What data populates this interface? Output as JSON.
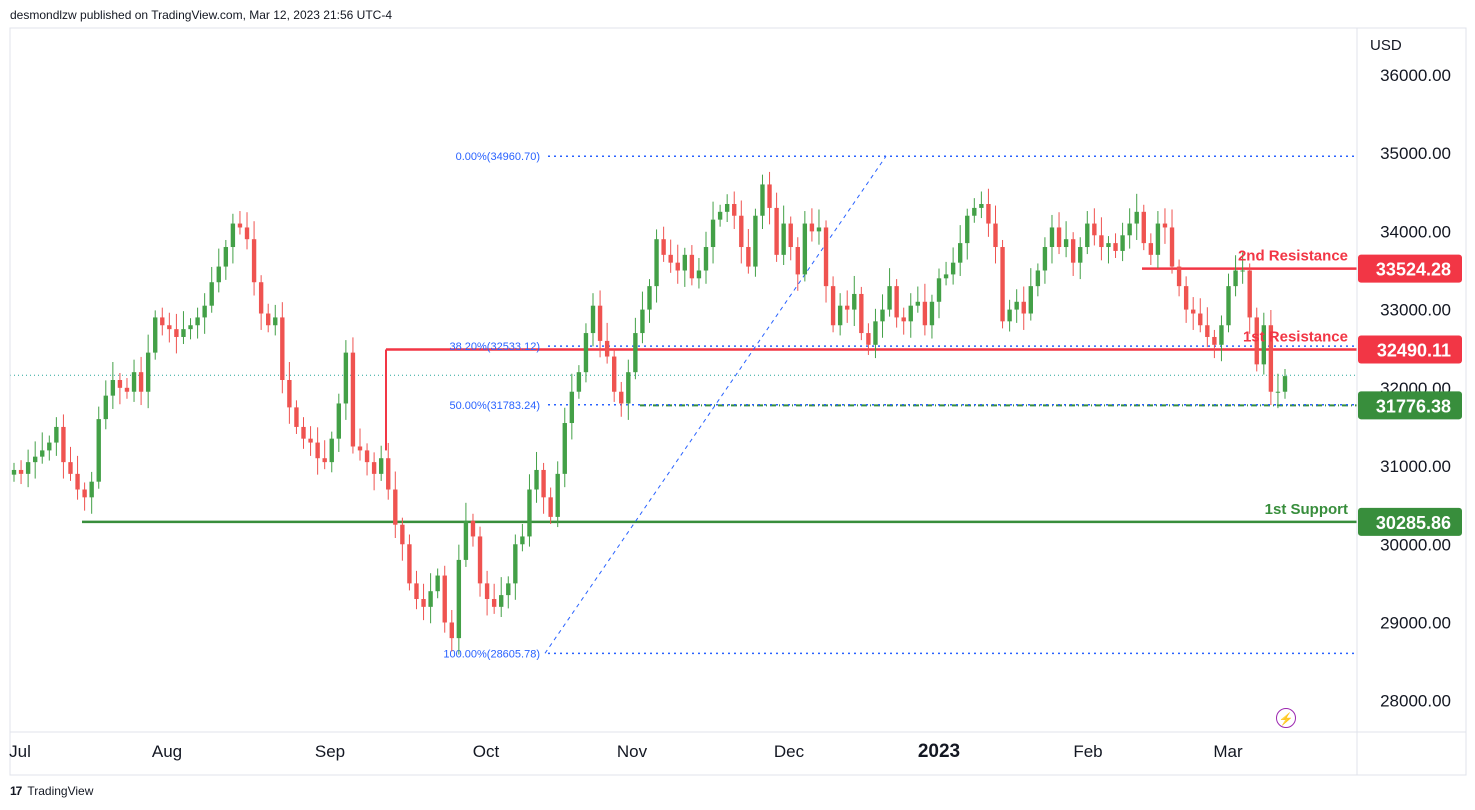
{
  "header": {
    "publisher": "desmondlzw published on TradingView.com, Mar 12, 2023 21:56 UTC-4"
  },
  "footer": {
    "brand": "TradingView",
    "logo": "17"
  },
  "colors": {
    "up": "#26a69a",
    "up_body": "#43a047",
    "down": "#ef5350",
    "resistance": "#f23645",
    "support": "#388e3c",
    "fib": "#2962ff",
    "grid": "#e0e3eb"
  },
  "chart_data": {
    "type": "candlestick",
    "currency_label": "USD",
    "y_ticks": [
      "36000.00",
      "35000.00",
      "34000.00",
      "33000.00",
      "32000.00",
      "31000.00",
      "30000.00",
      "29000.00",
      "28000.00"
    ],
    "ylim": [
      27600,
      36600
    ],
    "x_ticks": [
      {
        "label": "Jul",
        "bold": false
      },
      {
        "label": "Aug",
        "bold": false
      },
      {
        "label": "Sep",
        "bold": false
      },
      {
        "label": "Oct",
        "bold": false
      },
      {
        "label": "Nov",
        "bold": false
      },
      {
        "label": "Dec",
        "bold": false
      },
      {
        "label": "2023",
        "bold": true
      },
      {
        "label": "Feb",
        "bold": false
      },
      {
        "label": "Mar",
        "bold": false
      }
    ],
    "levels": [
      {
        "name": "2nd Resistance",
        "value": 33524.28,
        "label": "33524.28",
        "kind": "resistance"
      },
      {
        "name": "1st Resistance",
        "value": 32490.11,
        "label": "32490.11",
        "kind": "resistance"
      },
      {
        "name": "",
        "value": 31776.38,
        "label": "31776.38",
        "kind": "support"
      },
      {
        "name": "1st Support",
        "value": 30285.86,
        "label": "30285.86",
        "kind": "support"
      }
    ],
    "fib_levels": [
      {
        "label": "0.00%(34960.70)",
        "value": 34960.7
      },
      {
        "label": "38.20%(32533.12)",
        "value": 32533.12
      },
      {
        "label": "50.00%(31783.24)",
        "value": 31783.24
      },
      {
        "label": "100.00%(28605.78)",
        "value": 28605.78
      }
    ],
    "current_price": 32160,
    "closes": [
      30950,
      30900,
      31050,
      31120,
      31200,
      31300,
      31500,
      31050,
      30900,
      30700,
      30600,
      30800,
      31600,
      31900,
      32100,
      32000,
      31950,
      32200,
      31950,
      32450,
      32900,
      32800,
      32750,
      32650,
      32750,
      32800,
      32900,
      33050,
      33350,
      33550,
      33800,
      34100,
      34050,
      33900,
      33350,
      32950,
      32800,
      32900,
      32100,
      31750,
      31500,
      31350,
      31300,
      31100,
      31050,
      31350,
      31800,
      32450,
      31250,
      31200,
      31050,
      30900,
      31100,
      30700,
      30250,
      30000,
      29500,
      29300,
      29200,
      29400,
      29600,
      29000,
      28800,
      29800,
      30300,
      30100,
      29500,
      29300,
      29200,
      29350,
      29500,
      30000,
      30100,
      30700,
      30950,
      30600,
      30350,
      30900,
      31550,
      31950,
      32200,
      32700,
      33050,
      32600,
      32400,
      31950,
      31800,
      32200,
      32700,
      33000,
      33300,
      33900,
      33700,
      33600,
      33500,
      33700,
      33400,
      33500,
      33800,
      34150,
      34250,
      34350,
      34200,
      33800,
      33550,
      34200,
      34600,
      34300,
      33700,
      34100,
      33800,
      33450,
      34100,
      34000,
      34050,
      33300,
      32800,
      33050,
      33000,
      33200,
      32700,
      32550,
      32850,
      33000,
      33300,
      32900,
      32850,
      33050,
      33100,
      32800,
      33100,
      33400,
      33450,
      33600,
      33850,
      34200,
      34300,
      34350,
      34100,
      33800,
      32850,
      33000,
      33100,
      32950,
      33300,
      33500,
      33800,
      34050,
      33800,
      33900,
      33600,
      33800,
      34100,
      33950,
      33800,
      33850,
      33750,
      33950,
      34100,
      34250,
      33850,
      33700,
      34100,
      34050,
      33550,
      33300,
      33000,
      32950,
      32800,
      32650,
      32550,
      32800,
      33300,
      33500,
      33500,
      32900,
      32300,
      32800,
      31950,
      31950,
      32150
    ]
  }
}
